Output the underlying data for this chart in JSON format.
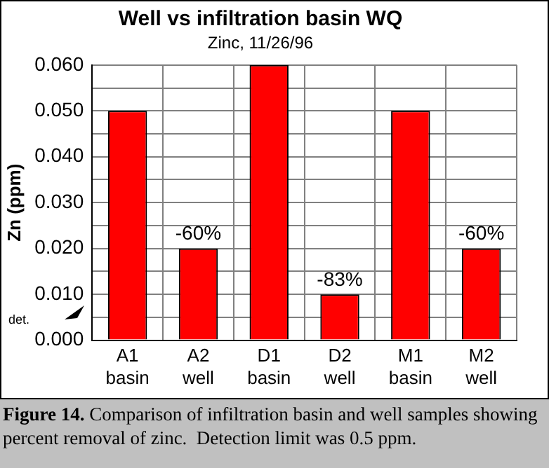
{
  "chart_data": {
    "type": "bar",
    "title": "Well vs infiltration basin WQ",
    "subtitle": "Zinc, 11/26/96",
    "ylabel": "Zn (ppm)",
    "categories": [
      "A1\nbasin",
      "A2\nwell",
      "D1\nbasin",
      "D2\nwell",
      "M1\nbasin",
      "M2\nwell"
    ],
    "values": [
      0.05,
      0.02,
      0.06,
      0.01,
      0.05,
      0.02
    ],
    "color": "#ff0000",
    "ylim": [
      0,
      0.06
    ],
    "yticks": [
      {
        "value": 0,
        "label": "0.000"
      },
      {
        "value": 0.005,
        "label": null
      },
      {
        "value": 0.01,
        "label": "0.010"
      },
      {
        "value": 0.015,
        "label": null
      },
      {
        "value": 0.02,
        "label": "0.020"
      },
      {
        "value": 0.025,
        "label": null
      },
      {
        "value": 0.03,
        "label": "0.030"
      },
      {
        "value": 0.035,
        "label": null
      },
      {
        "value": 0.04,
        "label": "0.040"
      },
      {
        "value": 0.045,
        "label": null
      },
      {
        "value": 0.05,
        "label": "0.050"
      },
      {
        "value": 0.055,
        "label": null
      },
      {
        "value": 0.06,
        "label": "0.060"
      }
    ],
    "grid": true,
    "annotations": [
      "det.",
      "Figure 14. Comparison of infiltration basin and well samples showing percent removal of zinc.  Detection limit was 0.5 ppm.",
      {
        "text": "-60%",
        "x": "A2\nwell",
        "y": 0.02
      },
      {
        "text": "-83%",
        "x": "D2\nwell",
        "y": 0.01
      },
      {
        "text": "-60%",
        "x": "M2\nwell",
        "y": 0.02
      }
    ]
  }
}
